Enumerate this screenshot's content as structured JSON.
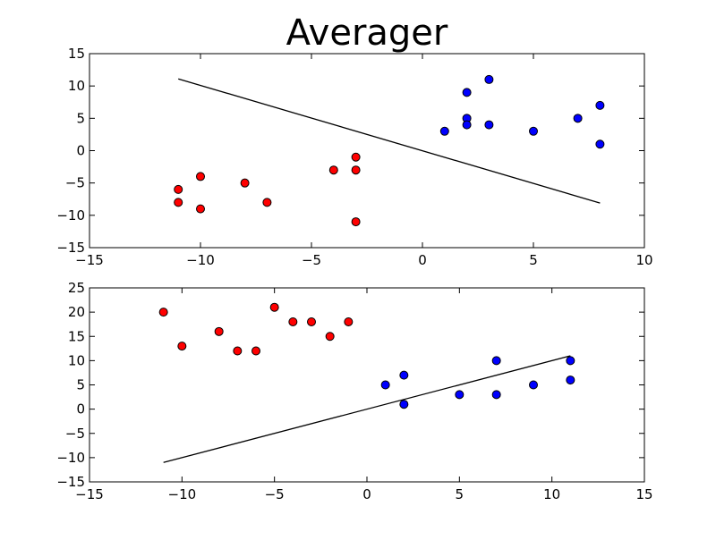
{
  "figure": {
    "title": "Averager"
  },
  "chart_data": [
    {
      "type": "scatter",
      "title": "",
      "xlabel": "",
      "ylabel": "",
      "xlim": [
        -15,
        10
      ],
      "ylim": [
        -15,
        15
      ],
      "xticks": [
        -15,
        -10,
        -5,
        0,
        5,
        10
      ],
      "yticks": [
        -15,
        -10,
        -5,
        0,
        5,
        10,
        15
      ],
      "grid": false,
      "series": [
        {
          "color": "#ff0000",
          "points": [
            [
              -11,
              -6
            ],
            [
              -11,
              -8
            ],
            [
              -10,
              -4
            ],
            [
              -10,
              -9
            ],
            [
              -8,
              -5
            ],
            [
              -7,
              -8
            ],
            [
              -4,
              -3
            ],
            [
              -3,
              -1
            ],
            [
              -3,
              -3
            ],
            [
              -3,
              -11
            ]
          ]
        },
        {
          "color": "#0000ff",
          "points": [
            [
              1,
              3
            ],
            [
              2,
              9
            ],
            [
              2,
              5
            ],
            [
              2,
              4
            ],
            [
              3,
              11
            ],
            [
              3,
              4
            ],
            [
              5,
              3
            ],
            [
              7,
              5
            ],
            [
              8,
              7
            ],
            [
              8,
              1
            ]
          ]
        }
      ],
      "line": {
        "color": "#000000",
        "points": [
          [
            -11,
            11.1
          ],
          [
            8,
            -8.1
          ]
        ]
      }
    },
    {
      "type": "scatter",
      "title": "",
      "xlabel": "",
      "ylabel": "",
      "xlim": [
        -15,
        15
      ],
      "ylim": [
        -15,
        25
      ],
      "xticks": [
        -15,
        -10,
        -5,
        0,
        5,
        10,
        15
      ],
      "yticks": [
        -15,
        -10,
        -5,
        0,
        5,
        10,
        15,
        20,
        25
      ],
      "grid": false,
      "series": [
        {
          "color": "#ff0000",
          "points": [
            [
              -11,
              20
            ],
            [
              -10,
              13
            ],
            [
              -8,
              16
            ],
            [
              -7,
              12
            ],
            [
              -6,
              12
            ],
            [
              -5,
              21
            ],
            [
              -4,
              18
            ],
            [
              -3,
              18
            ],
            [
              -2,
              15
            ],
            [
              -1,
              18
            ]
          ]
        },
        {
          "color": "#0000ff",
          "points": [
            [
              1,
              5
            ],
            [
              2,
              7
            ],
            [
              2,
              1
            ],
            [
              5,
              3
            ],
            [
              7,
              10
            ],
            [
              7,
              3
            ],
            [
              9,
              5
            ],
            [
              11,
              10
            ],
            [
              11,
              6
            ]
          ]
        }
      ],
      "line": {
        "color": "#000000",
        "points": [
          [
            -11,
            -11
          ],
          [
            11,
            11
          ]
        ]
      }
    }
  ]
}
